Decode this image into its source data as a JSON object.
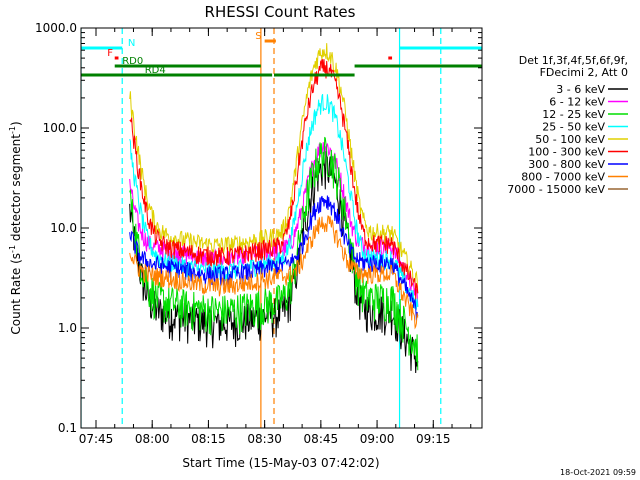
{
  "chart_data": {
    "type": "line",
    "title": "RHESSI Count Rates",
    "xlabel": "Start Time (15-May-03 07:42:02)",
    "ylabel_main": "Count Rate (s",
    "ylabel_sup": "-1",
    "ylabel_tail": " detector segment",
    "ylabel_end": ")",
    "yscale": "log",
    "ylim": [
      0.1,
      1000
    ],
    "y_ticks": [
      {
        "v": 1000,
        "label": "1000.0"
      },
      {
        "v": 100,
        "label": "100.0"
      },
      {
        "v": 10,
        "label": "10.0"
      },
      {
        "v": 1,
        "label": "1.0"
      },
      {
        "v": 0.1,
        "label": "0.1"
      }
    ],
    "xlim_min": [
      -1,
      106
    ],
    "x_ticks": [
      {
        "m": 3,
        "label": "07:45"
      },
      {
        "m": 18,
        "label": "08:00"
      },
      {
        "m": 33,
        "label": "08:15"
      },
      {
        "m": 48,
        "label": "08:30"
      },
      {
        "m": 63,
        "label": "08:45"
      },
      {
        "m": 78,
        "label": "09:00"
      },
      {
        "m": 93,
        "label": "09:15"
      }
    ],
    "timestamp": "18-Oct-2021 09:59",
    "legend_header": [
      "Det 1f,3f,4f,5f,6f,9f,",
      "FDecimi 2, Att 0"
    ],
    "series": [
      {
        "name": "3 - 6 keV",
        "color": "#000000",
        "base": 1.5,
        "flare": 40
      },
      {
        "name": "6 - 12 keV",
        "color": "#ff00ff",
        "base": 6.5,
        "flare": 60
      },
      {
        "name": "12 - 25 keV",
        "color": "#00dd00",
        "base": 2.0,
        "flare": 55
      },
      {
        "name": "25 - 50 keV",
        "color": "#00ffff",
        "base": 5.0,
        "flare": 180
      },
      {
        "name": "50 - 100 keV",
        "color": "#e0d000",
        "base": 9.0,
        "flare": 600
      },
      {
        "name": "100 - 300 keV",
        "color": "#ff0000",
        "base": 7.0,
        "flare": 400
      },
      {
        "name": "300 - 800 keV",
        "color": "#0000ff",
        "base": 4.5,
        "flare": 15
      },
      {
        "name": "800 - 7000 keV",
        "color": "#ff8000",
        "base": 3.5,
        "flare": 8
      },
      {
        "name": "7000 - 15000 keV",
        "color": "#996633",
        "base": null,
        "flare": null
      }
    ],
    "flags": [
      {
        "label": "N",
        "color": "#00ffff"
      },
      {
        "label": "F",
        "color": "#ff0000"
      },
      {
        "label": "RD0",
        "color": "#008000"
      },
      {
        "label": "RD4",
        "color": "#008000"
      },
      {
        "label": "S",
        "color": "#ff8000"
      }
    ],
    "vlines": [
      {
        "m": -1,
        "color": "#00ffff",
        "style": "solid"
      },
      {
        "m": 10,
        "color": "#00ffff",
        "style": "dashed"
      },
      {
        "m": 47,
        "color": "#ff8000",
        "style": "solid"
      },
      {
        "m": 50.5,
        "color": "#ff8000",
        "style": "dashed"
      },
      {
        "m": 84,
        "color": "#00ffff",
        "style": "solid"
      },
      {
        "m": 95,
        "color": "#00ffff",
        "style": "dashed"
      }
    ]
  }
}
